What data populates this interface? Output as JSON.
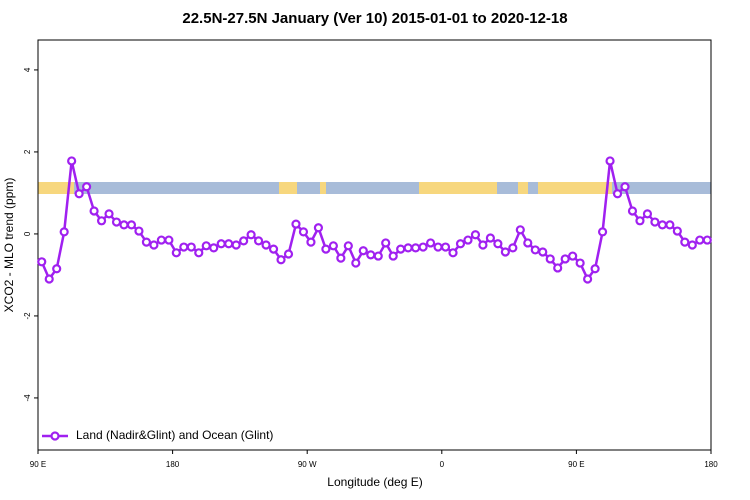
{
  "chart_data": {
    "type": "line",
    "title": "22.5N-27.5N January (Ver 10)   2015-01-01 to 2020-12-18",
    "x_label": "Longitude (deg E)",
    "y_label": "XCO2 - MLO trend (ppm)",
    "xlim": [
      90,
      540
    ],
    "ylim": [
      -5.27,
      4.73
    ],
    "xticks": [
      {
        "value": 90,
        "label": "90 E"
      },
      180,
      {
        "value": 270,
        "label": "90 W"
      },
      {
        "value": 360,
        "label": "0"
      },
      {
        "value": 450,
        "label": "90 E"
      },
      {
        "value": 540,
        "label": "180"
      }
    ],
    "yticks": [
      4,
      2,
      0,
      -2,
      -4
    ],
    "legend": "bottom-left",
    "x": [
      92.5,
      97.5,
      102.5,
      107.5,
      112.5,
      117.5,
      122.5,
      127.5,
      132.5,
      137.5,
      142.5,
      147.5,
      152.5,
      157.5,
      162.5,
      167.5,
      172.5,
      177.5,
      182.5,
      187.5,
      192.5,
      197.5,
      202.5,
      207.5,
      212.5,
      217.5,
      222.5,
      227.5,
      232.5,
      237.5,
      242.5,
      247.5,
      252.5,
      257.5,
      262.5,
      267.5,
      272.5,
      277.5,
      282.5,
      287.5,
      292.5,
      297.5,
      302.5,
      307.5,
      312.5,
      317.5,
      322.5,
      327.5,
      332.5,
      337.5,
      342.5,
      347.5,
      352.5,
      357.5,
      362.5,
      367.5,
      372.5,
      377.5,
      382.5,
      387.5,
      392.5,
      397.5,
      402.5,
      407.5,
      412.5,
      417.5,
      422.5,
      427.5,
      432.5,
      437.5,
      442.5,
      447.5,
      452.5,
      457.5,
      462.5,
      467.5,
      472.5,
      477.5,
      482.5,
      487.5,
      492.5,
      497.5,
      502.5,
      507.5,
      512.5,
      517.5,
      522.5,
      527.5,
      532.5,
      537.5
    ],
    "series": [
      {
        "name": "Land (Nadir&Glint) and Ocean (Glint)",
        "color": "#a020f0",
        "values": [
          -0.68,
          -1.1,
          -0.85,
          0.05,
          1.78,
          0.98,
          1.15,
          0.56,
          0.32,
          0.49,
          0.29,
          0.22,
          0.22,
          0.07,
          -0.2,
          -0.27,
          -0.15,
          -0.15,
          -0.46,
          -0.32,
          -0.32,
          -0.46,
          -0.29,
          -0.34,
          -0.24,
          -0.24,
          -0.27,
          -0.17,
          -0.02,
          -0.17,
          -0.27,
          -0.37,
          -0.63,
          -0.49,
          0.24,
          0.05,
          -0.2,
          0.15,
          -0.37,
          -0.29,
          -0.59,
          -0.29,
          -0.71,
          -0.41,
          -0.51,
          -0.54,
          -0.22,
          -0.54,
          -0.37,
          -0.34,
          -0.34,
          -0.32,
          -0.22,
          -0.32,
          -0.32,
          -0.46,
          -0.24,
          -0.15,
          -0.02,
          -0.27,
          -0.1,
          -0.24,
          -0.44,
          -0.34,
          0.1,
          -0.22,
          -0.39,
          -0.44,
          -0.61,
          -0.83,
          -0.61,
          -0.54,
          -0.71,
          -1.1,
          -0.85,
          0.05,
          1.78,
          0.98,
          1.15,
          0.56,
          0.32,
          0.49,
          0.29,
          0.22,
          0.22,
          0.07,
          -0.2,
          -0.27,
          -0.15,
          -0.15
        ]
      }
    ]
  }
}
